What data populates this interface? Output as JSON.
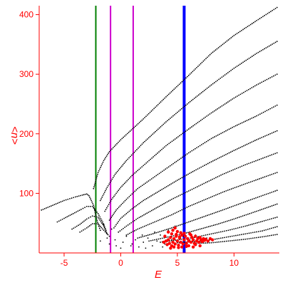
{
  "chart_data": {
    "type": "scatter",
    "xlabel": "E",
    "ylabel": "<n>",
    "xlim": [
      -7.2,
      14
    ],
    "ylim": [
      0,
      415
    ],
    "xticks": [
      -5,
      0,
      5,
      10
    ],
    "yticks": [
      100,
      200,
      300,
      400
    ],
    "x_tick_labels": [
      "-5",
      "0",
      "5",
      "10"
    ],
    "y_tick_labels": [
      "100",
      "200",
      "300",
      "400"
    ],
    "grid": false,
    "legend": "none",
    "colors": {
      "axes": "#ff0000",
      "points": "#000000",
      "highlight_points": "#ff0000",
      "line_green": "#008000",
      "line_magenta": "#cc00cc",
      "line_blue": "#0000ff"
    },
    "vertical_lines": [
      {
        "x": -2.2,
        "color": "#008000",
        "weight": "normal"
      },
      {
        "x": -0.9,
        "color": "#cc00cc",
        "weight": "normal"
      },
      {
        "x": 1.1,
        "color": "#cc00cc",
        "weight": "normal"
      },
      {
        "x": 5.6,
        "color": "#0000ff",
        "weight": "bold"
      }
    ],
    "series": [
      {
        "points": [
          [
            -7.0,
            72
          ],
          [
            -6.0,
            80
          ],
          [
            -5.0,
            88
          ],
          [
            -4.0,
            94
          ],
          [
            -3.4,
            97
          ],
          [
            -3.0,
            99
          ],
          [
            -2.8,
            96
          ],
          [
            -2.4,
            80
          ],
          [
            -2.2,
            63
          ],
          [
            -2.0,
            48
          ],
          [
            -1.8,
            38
          ]
        ]
      },
      {
        "points": [
          [
            -5.6,
            52
          ],
          [
            -5.0,
            58
          ],
          [
            -4.2,
            66
          ],
          [
            -3.5,
            73
          ],
          [
            -3.0,
            78
          ],
          [
            -2.5,
            78
          ],
          [
            -2.0,
            66
          ],
          [
            -1.6,
            52
          ],
          [
            -1.3,
            38
          ]
        ]
      },
      {
        "points": [
          [
            -4.3,
            40
          ],
          [
            -3.6,
            48
          ],
          [
            -3.0,
            57
          ],
          [
            -2.5,
            62
          ],
          [
            -2.0,
            60
          ],
          [
            -1.5,
            45
          ],
          [
            -1.2,
            32
          ]
        ]
      },
      {
        "points": [
          [
            -3.6,
            35
          ],
          [
            -3.0,
            42
          ],
          [
            -2.5,
            49
          ],
          [
            -2.0,
            49
          ],
          [
            -1.5,
            38
          ],
          [
            -1.0,
            28
          ]
        ]
      },
      {
        "points": [
          [
            -2.4,
            108
          ],
          [
            -2.0,
            135
          ],
          [
            -1.5,
            155
          ],
          [
            -1.0,
            170
          ],
          [
            0.0,
            190
          ],
          [
            2.0,
            225
          ],
          [
            4.0,
            262
          ],
          [
            6.0,
            298
          ],
          [
            8.0,
            335
          ],
          [
            10.0,
            365
          ],
          [
            12.0,
            390
          ],
          [
            13.8,
            412
          ]
        ]
      },
      {
        "points": [
          [
            -1.8,
            88
          ],
          [
            -1.2,
            110
          ],
          [
            -0.5,
            132
          ],
          [
            0.5,
            155
          ],
          [
            2.0,
            185
          ],
          [
            4.0,
            220
          ],
          [
            6.0,
            252
          ],
          [
            8.0,
            282
          ],
          [
            10.0,
            310
          ],
          [
            12.0,
            335
          ],
          [
            13.8,
            355
          ]
        ]
      },
      {
        "points": [
          [
            -1.4,
            70
          ],
          [
            -0.8,
            90
          ],
          [
            0.0,
            110
          ],
          [
            1.0,
            130
          ],
          [
            2.5,
            155
          ],
          [
            4.0,
            180
          ],
          [
            6.0,
            208
          ],
          [
            8.0,
            235
          ],
          [
            10.0,
            260
          ],
          [
            12.0,
            282
          ],
          [
            13.8,
            300
          ]
        ]
      },
      {
        "points": [
          [
            -1.0,
            55
          ],
          [
            -0.4,
            72
          ],
          [
            0.5,
            90
          ],
          [
            1.5,
            108
          ],
          [
            3.0,
            128
          ],
          [
            4.5,
            148
          ],
          [
            6.0,
            168
          ],
          [
            8.0,
            192
          ],
          [
            10.0,
            212
          ],
          [
            12.0,
            230
          ],
          [
            13.8,
            248
          ]
        ]
      },
      {
        "points": [
          [
            -0.6,
            42
          ],
          [
            0.0,
            58
          ],
          [
            1.0,
            74
          ],
          [
            2.0,
            88
          ],
          [
            3.5,
            105
          ],
          [
            5.0,
            122
          ],
          [
            6.5,
            138
          ],
          [
            8.0,
            153
          ],
          [
            10.0,
            172
          ],
          [
            12.0,
            190
          ],
          [
            13.8,
            205
          ]
        ]
      },
      {
        "points": [
          [
            -0.2,
            35
          ],
          [
            0.5,
            45
          ],
          [
            1.5,
            58
          ],
          [
            3.0,
            74
          ],
          [
            4.5,
            90
          ],
          [
            6.0,
            104
          ],
          [
            7.5,
            118
          ],
          [
            9.0,
            132
          ],
          [
            11.0,
            148
          ],
          [
            13.8,
            168
          ]
        ]
      },
      {
        "points": [
          [
            0.5,
            30
          ],
          [
            1.5,
            40
          ],
          [
            3.0,
            52
          ],
          [
            4.5,
            64
          ],
          [
            6.0,
            78
          ],
          [
            7.5,
            90
          ],
          [
            9.0,
            102
          ],
          [
            11.0,
            116
          ],
          [
            13.8,
            135
          ]
        ]
      },
      {
        "points": [
          [
            1.5,
            25
          ],
          [
            3.0,
            33
          ],
          [
            4.5,
            42
          ],
          [
            6.0,
            52
          ],
          [
            7.5,
            62
          ],
          [
            9.0,
            72
          ],
          [
            11.0,
            86
          ],
          [
            13.8,
            105
          ]
        ]
      },
      {
        "points": [
          [
            2.5,
            20
          ],
          [
            4.0,
            26
          ],
          [
            5.5,
            32
          ],
          [
            7.0,
            40
          ],
          [
            8.5,
            48
          ],
          [
            10.0,
            57
          ],
          [
            12.0,
            70
          ],
          [
            13.8,
            82
          ]
        ]
      },
      {
        "points": [
          [
            3.5,
            18
          ],
          [
            5.0,
            22
          ],
          [
            6.5,
            26
          ],
          [
            8.0,
            32
          ],
          [
            9.5,
            38
          ],
          [
            11.0,
            45
          ],
          [
            12.5,
            53
          ],
          [
            13.8,
            60
          ]
        ]
      },
      {
        "points": [
          [
            5.0,
            17
          ],
          [
            6.5,
            19
          ],
          [
            8.0,
            22
          ],
          [
            9.5,
            27
          ],
          [
            11.0,
            32
          ],
          [
            12.5,
            37
          ],
          [
            13.8,
            44
          ]
        ]
      },
      {
        "points": [
          [
            6.5,
            16
          ],
          [
            8.0,
            17
          ],
          [
            9.5,
            20
          ],
          [
            11.0,
            23
          ],
          [
            12.5,
            27
          ],
          [
            13.8,
            31
          ]
        ]
      },
      {
        "points": [
          [
            -1.8,
            20
          ],
          [
            -1.5,
            48
          ],
          [
            -1.2,
            25
          ],
          [
            -0.8,
            40
          ],
          [
            -0.5,
            22
          ],
          [
            -0.2,
            35
          ],
          [
            0.2,
            18
          ],
          [
            0.5,
            28
          ],
          [
            0.9,
            12
          ],
          [
            1.3,
            22
          ],
          [
            1.6,
            10
          ],
          [
            2.0,
            18
          ],
          [
            2.4,
            25
          ],
          [
            2.8,
            12
          ],
          [
            3.2,
            20
          ],
          [
            3.5,
            30
          ],
          [
            3.9,
            15
          ],
          [
            4.2,
            38
          ],
          [
            4.5,
            22
          ],
          [
            4.8,
            45
          ],
          [
            5.2,
            18
          ],
          [
            5.5,
            28
          ],
          [
            6.1,
            22
          ],
          [
            6.6,
            30
          ],
          [
            7.1,
            18
          ],
          [
            7.6,
            25
          ],
          [
            0.0,
            8
          ],
          [
            1.0,
            15
          ],
          [
            2.2,
            8
          ],
          [
            3.0,
            35
          ],
          [
            -1.0,
            15
          ],
          [
            -0.4,
            12
          ],
          [
            1.9,
            30
          ],
          [
            3.7,
            10
          ]
        ]
      }
    ],
    "highlight_points": [
      [
        3.8,
        18
      ],
      [
        4.0,
        20
      ],
      [
        4.1,
        14
      ],
      [
        4.2,
        22
      ],
      [
        4.3,
        16
      ],
      [
        4.4,
        26
      ],
      [
        4.5,
        12
      ],
      [
        4.6,
        18
      ],
      [
        4.7,
        24
      ],
      [
        4.8,
        15
      ],
      [
        4.9,
        28
      ],
      [
        5.0,
        20
      ],
      [
        5.1,
        13
      ],
      [
        5.2,
        25
      ],
      [
        5.3,
        18
      ],
      [
        5.4,
        30
      ],
      [
        5.5,
        15
      ],
      [
        5.6,
        22
      ],
      [
        5.7,
        28
      ],
      [
        5.8,
        16
      ],
      [
        5.9,
        24
      ],
      [
        6.0,
        20
      ],
      [
        6.1,
        32
      ],
      [
        6.2,
        18
      ],
      [
        6.3,
        26
      ],
      [
        6.4,
        22
      ],
      [
        6.5,
        16
      ],
      [
        6.6,
        28
      ],
      [
        6.7,
        20
      ],
      [
        6.8,
        24
      ],
      [
        6.9,
        18
      ],
      [
        7.0,
        26
      ],
      [
        7.1,
        22
      ],
      [
        7.2,
        19
      ],
      [
        7.3,
        24
      ],
      [
        7.4,
        21
      ],
      [
        7.5,
        23
      ],
      [
        7.7,
        20
      ],
      [
        7.9,
        24
      ],
      [
        8.1,
        22
      ],
      [
        4.6,
        38
      ],
      [
        4.8,
        42
      ],
      [
        4.2,
        35
      ],
      [
        5.0,
        36
      ],
      [
        3.9,
        28
      ],
      [
        4.5,
        32
      ],
      [
        5.3,
        34
      ],
      [
        4.7,
        10
      ],
      [
        5.1,
        9
      ],
      [
        4.4,
        8
      ],
      [
        5.4,
        10
      ],
      [
        6.0,
        12
      ],
      [
        6.4,
        10
      ],
      [
        5.8,
        11
      ],
      [
        4.9,
        31
      ],
      [
        5.2,
        27
      ],
      [
        5.6,
        33
      ],
      [
        6.2,
        30
      ],
      [
        6.6,
        14
      ],
      [
        7.0,
        12
      ]
    ]
  }
}
